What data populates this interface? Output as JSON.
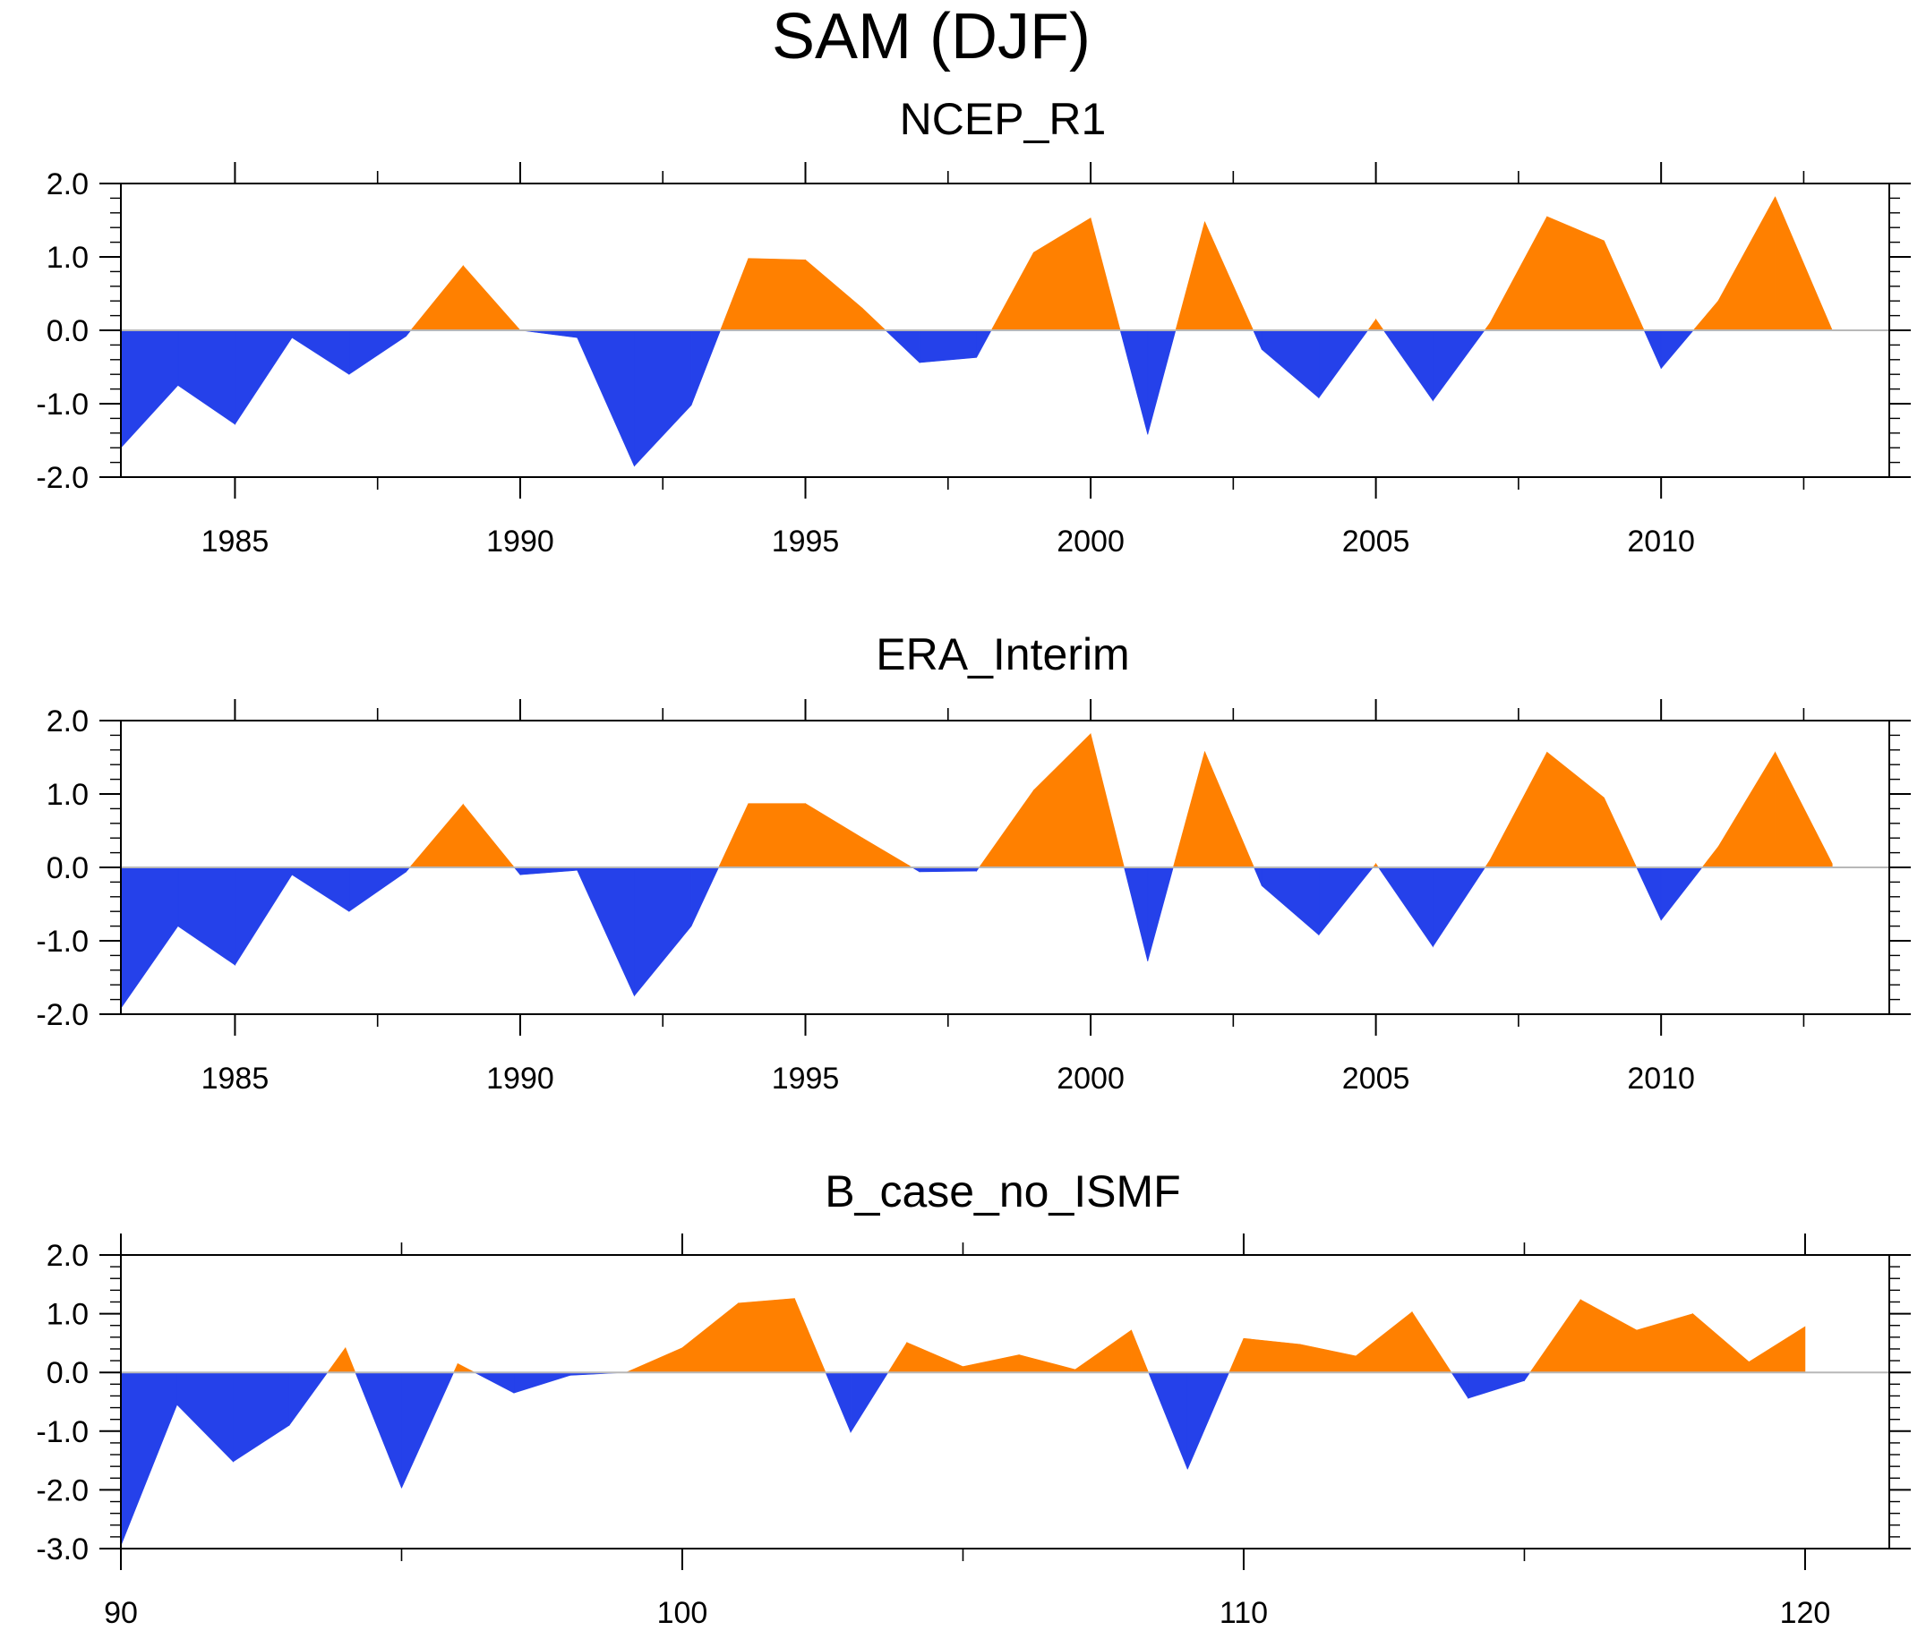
{
  "title": "SAM (DJF)",
  "colors": {
    "positive": "#ff8000",
    "negative": "#2541ea",
    "axis": "#000000",
    "zero_line": "#b8b8b8"
  },
  "chart_data": [
    {
      "type": "area",
      "title": "NCEP_R1",
      "xlabel": "",
      "ylabel": "",
      "xlim": [
        1983,
        2014
      ],
      "ylim": [
        -2.0,
        2.0
      ],
      "xticks": [
        1985,
        1990,
        1995,
        2000,
        2005,
        2010
      ],
      "xtick_labels": [
        "1985",
        "1990",
        "1995",
        "2000",
        "2005",
        "2010"
      ],
      "yticks": [
        -2.0,
        -1.0,
        0.0,
        1.0,
        2.0
      ],
      "ytick_labels": [
        "-2.0",
        "-1.0",
        "0.0",
        "1.0",
        "2.0"
      ],
      "grid": false,
      "x": [
        1983,
        1984,
        1985,
        1986,
        1987,
        1988,
        1989,
        1990,
        1991,
        1992,
        1993,
        1994,
        1995,
        1996,
        1997,
        1998,
        1999,
        2000,
        2001,
        2002,
        2003,
        2004,
        2005,
        2006,
        2007,
        2008,
        2009,
        2010,
        2011,
        2012,
        2013
      ],
      "values": [
        -1.6,
        -0.75,
        -1.28,
        -0.1,
        -0.6,
        -0.08,
        0.88,
        0.0,
        -0.1,
        -1.85,
        -1.02,
        0.98,
        0.96,
        0.3,
        -0.44,
        -0.37,
        1.06,
        1.53,
        -1.42,
        1.48,
        -0.26,
        -0.92,
        0.15,
        -0.96,
        0.1,
        1.55,
        1.22,
        -0.52,
        0.4,
        1.82,
        0.0
      ]
    },
    {
      "type": "area",
      "title": "ERA_Interim",
      "xlabel": "",
      "ylabel": "",
      "xlim": [
        1983,
        2014
      ],
      "ylim": [
        -2.0,
        2.0
      ],
      "xticks": [
        1985,
        1990,
        1995,
        2000,
        2005,
        2010
      ],
      "xtick_labels": [
        "1985",
        "1990",
        "1995",
        "2000",
        "2005",
        "2010"
      ],
      "yticks": [
        -2.0,
        -1.0,
        0.0,
        1.0,
        2.0
      ],
      "ytick_labels": [
        "-2.0",
        "-1.0",
        "0.0",
        "1.0",
        "2.0"
      ],
      "grid": false,
      "x": [
        1983,
        1984,
        1985,
        1986,
        1987,
        1988,
        1989,
        1990,
        1991,
        1992,
        1993,
        1994,
        1995,
        1996,
        1997,
        1998,
        1999,
        2000,
        2001,
        2002,
        2003,
        2004,
        2005,
        2006,
        2007,
        2008,
        2009,
        2010,
        2011,
        2012,
        2013
      ],
      "values": [
        -1.92,
        -0.8,
        -1.33,
        -0.1,
        -0.6,
        -0.06,
        0.86,
        -0.1,
        -0.04,
        -1.75,
        -0.8,
        0.87,
        0.87,
        0.4,
        -0.06,
        -0.05,
        1.05,
        1.82,
        -1.28,
        1.58,
        -0.25,
        -0.92,
        0.05,
        -1.08,
        0.1,
        1.57,
        0.95,
        -0.72,
        0.28,
        1.57,
        0.05
      ]
    },
    {
      "type": "area",
      "title": "B_case_no_ISMF",
      "xlabel": "",
      "ylabel": "",
      "xlim": [
        90,
        121.5
      ],
      "ylim": [
        -3.0,
        2.0
      ],
      "xticks": [
        90,
        100,
        110,
        120
      ],
      "xtick_labels": [
        "90",
        "100",
        "110",
        "120"
      ],
      "yticks": [
        -3.0,
        -2.0,
        -1.0,
        0.0,
        1.0,
        2.0
      ],
      "ytick_labels": [
        "-3.0",
        "-2.0",
        "-1.0",
        "0.0",
        "1.0",
        "2.0"
      ],
      "grid": false,
      "x": [
        90,
        91,
        92,
        93,
        94,
        95,
        96,
        97,
        98,
        99,
        100,
        101,
        102,
        103,
        104,
        105,
        106,
        107,
        108,
        109,
        110,
        111,
        112,
        113,
        114,
        115,
        116,
        117,
        118,
        119,
        120
      ],
      "values": [
        -2.95,
        -0.55,
        -1.52,
        -0.9,
        0.42,
        -1.97,
        0.15,
        -0.35,
        -0.05,
        0.0,
        0.42,
        1.18,
        1.26,
        -1.02,
        0.51,
        0.1,
        0.3,
        0.05,
        0.72,
        -1.65,
        0.58,
        0.48,
        0.28,
        1.03,
        -0.44,
        -0.14,
        1.24,
        0.72,
        1.0,
        0.18,
        0.78
      ]
    }
  ]
}
